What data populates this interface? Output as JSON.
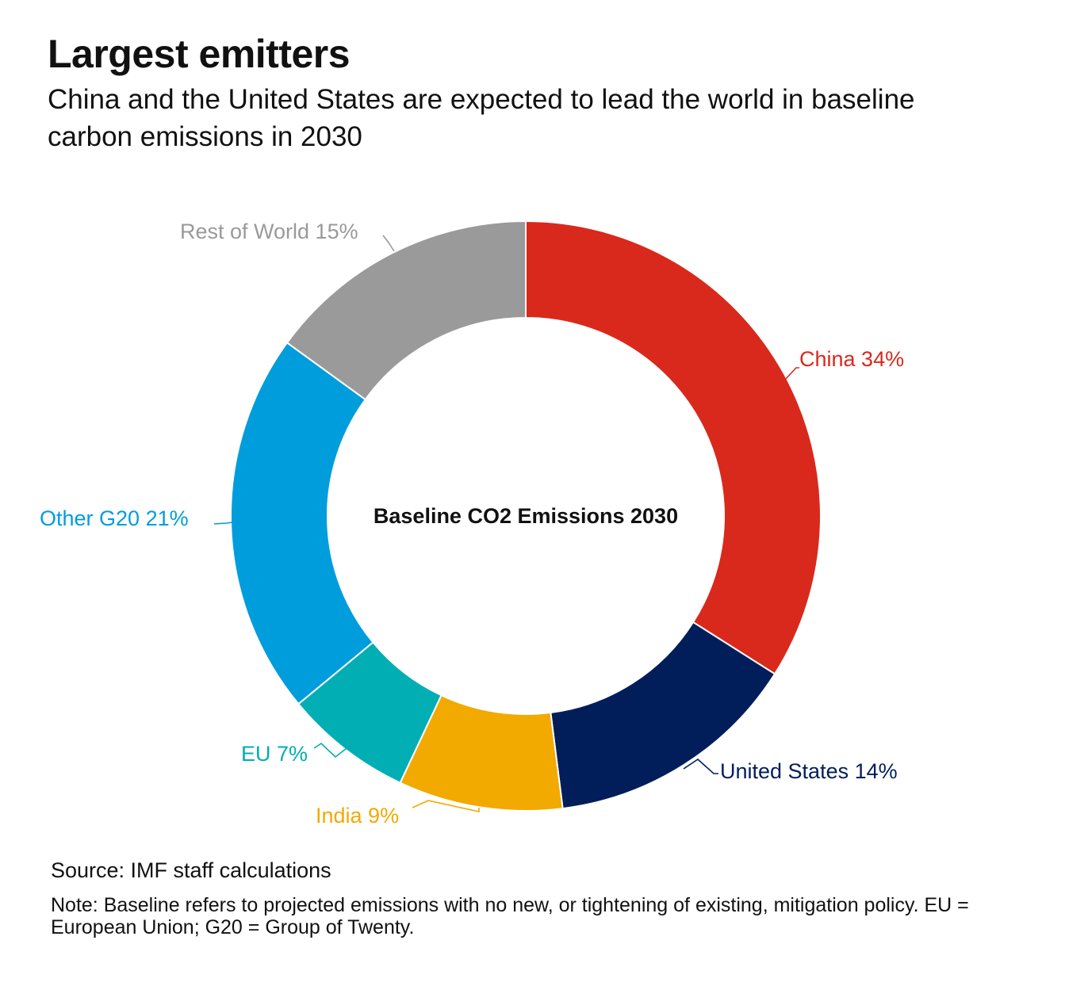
{
  "header": {
    "title": "Largest emitters",
    "subtitle": "China and the United States are expected to lead the world in baseline carbon emissions in 2030"
  },
  "chart_data": {
    "type": "pie",
    "variant": "donut",
    "center_label": "Baseline CO2 Emissions 2030",
    "unit": "%",
    "slices": [
      {
        "label": "China 34%",
        "name": "China",
        "value": 34,
        "color": "#d9291c"
      },
      {
        "label": "United States 14%",
        "name": "United States",
        "value": 14,
        "color": "#021e5a"
      },
      {
        "label": "India 9%",
        "name": "India",
        "value": 9,
        "color": "#f2a900"
      },
      {
        "label": "EU 7%",
        "name": "EU",
        "value": 7,
        "color": "#00aeb3"
      },
      {
        "label": "Other G20 21%",
        "name": "Other G20",
        "value": 21,
        "color": "#009ddc"
      },
      {
        "label": "Rest of World 15%",
        "name": "Rest of World",
        "value": 15,
        "color": "#9a9a9a"
      }
    ]
  },
  "footer": {
    "source": "Source: IMF staff calculations",
    "note": "Note: Baseline refers to projected emissions with no new, or tightening of existing, mitigation policy. EU = European Union; G20 = Group of Twenty."
  }
}
